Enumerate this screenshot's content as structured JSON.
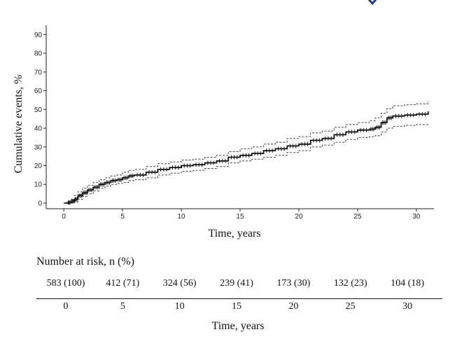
{
  "chart_data": {
    "type": "line",
    "xlabel": "Time, years",
    "ylabel": "Cumulative events, %",
    "xlim": [
      -1.5,
      31.5
    ],
    "ylim": [
      -3,
      95
    ],
    "x_ticks": [
      0,
      5,
      10,
      15,
      20,
      25,
      30
    ],
    "y_ticks": [
      0,
      10,
      20,
      30,
      40,
      50,
      60,
      70,
      80,
      90
    ],
    "grid": false,
    "colors": {
      "estimate": "#111111",
      "ci": "#444444",
      "accent": "#1f3a93"
    },
    "series": [
      {
        "style": "solid-with-censor-marks",
        "x": [
          0,
          0.3,
          0.6,
          0.9,
          1.2,
          1.6,
          2.0,
          2.5,
          3.0,
          3.5,
          4.0,
          4.5,
          5.0,
          5.5,
          6.0,
          7.0,
          8.0,
          9.0,
          10.0,
          11.0,
          12.0,
          13.0,
          14.0,
          15.0,
          16.0,
          17.0,
          18.0,
          19.0,
          20.0,
          21.0,
          22.0,
          23.0,
          24.0,
          25.0,
          26.0,
          26.5,
          27.0,
          27.5,
          28.0,
          29.0,
          30.0,
          31.0
        ],
        "y": [
          0,
          0.3,
          1,
          2,
          4,
          5.5,
          7,
          8.5,
          10,
          11,
          12,
          12.5,
          13.5,
          14.5,
          15,
          16.5,
          18,
          19,
          20,
          20.5,
          21.5,
          22.5,
          24.5,
          25.5,
          26.5,
          28,
          29,
          30.5,
          31.5,
          33.5,
          34.5,
          36.5,
          38,
          39,
          39.5,
          40.5,
          43,
          45.5,
          46.5,
          47,
          47.5,
          49
        ]
      },
      {
        "style": "dashed-upper-ci",
        "x": [
          0,
          0.3,
          0.6,
          0.9,
          1.2,
          1.6,
          2.0,
          2.5,
          3.0,
          3.5,
          4.0,
          4.5,
          5.0,
          5.5,
          6.0,
          7.0,
          8.0,
          9.0,
          10.0,
          11.0,
          12.0,
          13.0,
          14.0,
          15.0,
          16.0,
          17.0,
          18.0,
          19.0,
          20.0,
          21.0,
          22.0,
          23.0,
          24.0,
          25.0,
          26.0,
          26.5,
          27.0,
          27.5,
          28.0,
          29.0,
          30.0,
          31.0
        ],
        "y": [
          0,
          0.5,
          2,
          4,
          6,
          8,
          9.5,
          11,
          12.5,
          13.5,
          14.5,
          15,
          16.5,
          17.5,
          18,
          19.5,
          21,
          22,
          23,
          23.5,
          24.5,
          25.5,
          27.5,
          29,
          30,
          31.5,
          32.5,
          34.5,
          35.5,
          37.5,
          38.5,
          40.5,
          42,
          43,
          44,
          45.5,
          48,
          50.5,
          52,
          52.5,
          53,
          54.5
        ]
      },
      {
        "style": "dashed-lower-ci",
        "x": [
          0,
          0.3,
          0.6,
          0.9,
          1.2,
          1.6,
          2.0,
          2.5,
          3.0,
          3.5,
          4.0,
          4.5,
          5.0,
          5.5,
          6.0,
          7.0,
          8.0,
          9.0,
          10.0,
          11.0,
          12.0,
          13.0,
          14.0,
          15.0,
          16.0,
          17.0,
          18.0,
          19.0,
          20.0,
          21.0,
          22.0,
          23.0,
          24.0,
          25.0,
          26.0,
          26.5,
          27.0,
          27.5,
          28.0,
          29.0,
          30.0,
          31.0
        ],
        "y": [
          0,
          0,
          0,
          0.5,
          2,
          3.5,
          5,
          6.5,
          8,
          9,
          10,
          10.5,
          11,
          12,
          12.5,
          13.5,
          15,
          16,
          17,
          17.5,
          18.5,
          19.5,
          21.5,
          22.5,
          23.5,
          24.5,
          25.5,
          27,
          28,
          30,
          31,
          32.5,
          34,
          35,
          35.5,
          36,
          38,
          40,
          41,
          41.5,
          42,
          42.5
        ]
      }
    ]
  },
  "risk_table": {
    "title": "Number at risk, n (%)",
    "times": [
      0,
      5,
      10,
      15,
      20,
      25,
      30
    ],
    "values": [
      "583 (100)",
      "412 (71)",
      "324 (56)",
      "239 (41)",
      "173 (30)",
      "132 (23)",
      "104 (18)"
    ],
    "xlabel": "Time, years"
  }
}
